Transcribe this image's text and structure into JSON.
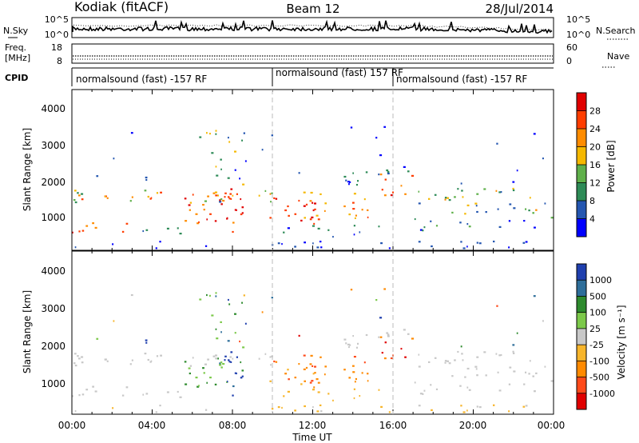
{
  "header": {
    "station": "Kodiak (fitACF)",
    "beam": "Beam 12",
    "date": "28/Jul/2014"
  },
  "strip_nsky": {
    "left_label": "N.Sky",
    "right_label": "N.Search",
    "left_ticks": [
      "10^5",
      "10^0"
    ],
    "right_ticks": [
      "10^5",
      "10^0"
    ]
  },
  "strip_freq": {
    "left_label_1": "Freq.",
    "left_label_2": "[MHz]",
    "right_label": "Nave",
    "left_ticks": [
      "18",
      "8"
    ],
    "right_ticks": [
      "60",
      "0"
    ]
  },
  "strip_cpid": {
    "label": "CPID",
    "segments": [
      {
        "text": "normalsound (fast) -157 RF",
        "start": 0,
        "end": 10
      },
      {
        "text": "normalsound (fast) 157 RF",
        "start": 10,
        "end": 16
      },
      {
        "text": "normalsound (fast) -157 RF",
        "start": 16,
        "end": 24
      }
    ]
  },
  "power_panel": {
    "ylabel": "Slant Range [km]",
    "yticks": [
      "4000",
      "3000",
      "2000",
      "1000"
    ],
    "colorbar_label": "Power [dB]",
    "colorbar_ticks": [
      "28",
      "24",
      "20",
      "16",
      "12",
      "8",
      "4"
    ],
    "colorbar_colors": [
      "#e00000",
      "#ff3d00",
      "#ff8c00",
      "#f5b800",
      "#5fb04a",
      "#2e8b57",
      "#2456b0",
      "#0000ff"
    ]
  },
  "velocity_panel": {
    "ylabel": "Slant Range [km]",
    "yticks": [
      "4000",
      "3000",
      "2000",
      "1000"
    ],
    "colorbar_label": "Velocity [m s⁻¹]",
    "colorbar_ticks": [
      "1000",
      "500",
      "100",
      "25",
      "-25",
      "-100",
      "-500",
      "-1000"
    ],
    "colorbar_colors": [
      "#1f3fae",
      "#2e6e9a",
      "#2e8b2e",
      "#7cc94a",
      "#c8c8c8",
      "#f7b52b",
      "#ff8a00",
      "#ff4a1a",
      "#e00000"
    ]
  },
  "xaxis": {
    "ticks": [
      "00:00",
      "04:00",
      "08:00",
      "12:00",
      "16:00",
      "20:00",
      "00:00"
    ],
    "label": "Time UT"
  },
  "chart_data": {
    "type": "heatmap",
    "title": "Kodiak (fitACF)",
    "subtitle": "Beam 12",
    "xlabel": "Time UT",
    "ylabel": "Slant Range [km]",
    "xlim": [
      0,
      24
    ],
    "ylim": [
      200,
      4600
    ],
    "x_ticks": [
      "00:00",
      "04:00",
      "08:00",
      "12:00",
      "16:00",
      "20:00",
      "00:00"
    ],
    "y_ticks": [
      1000,
      2000,
      3000,
      4000
    ],
    "power_colorbar_range_db": [
      0,
      32
    ],
    "velocity_colorbar_range_ms": [
      -1000,
      1000
    ],
    "cpid_changes_hours": [
      10,
      16
    ]
  }
}
